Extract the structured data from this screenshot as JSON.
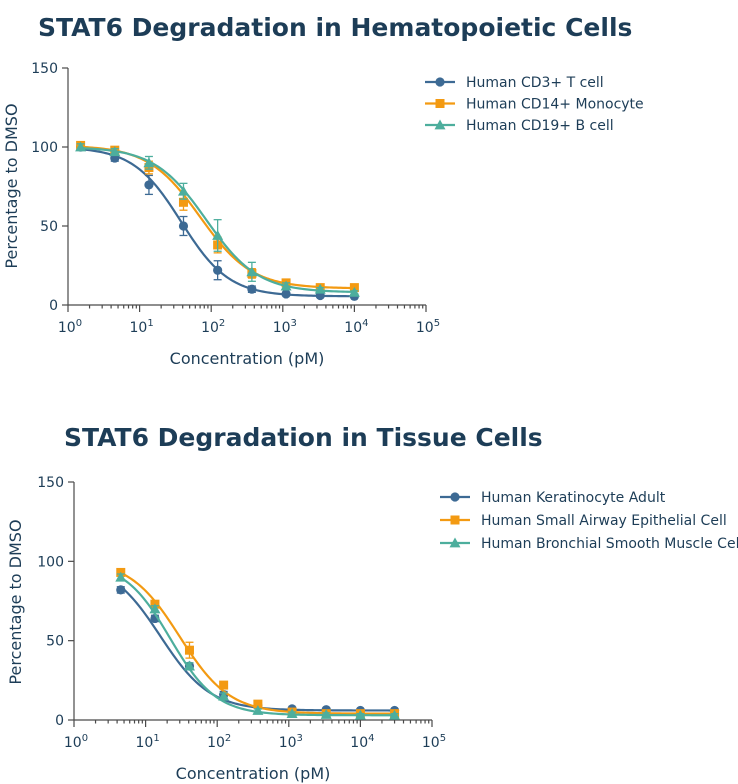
{
  "chart_data": [
    {
      "type": "line",
      "title": "STAT6 Degradation in Hematopoietic Cells",
      "xlabel": "Concentration (pM)",
      "ylabel": "Percentage to DMSO",
      "xscale": "log",
      "xlim": [
        1,
        100000
      ],
      "ylim": [
        0,
        150
      ],
      "xticks": [
        {
          "base": "10",
          "exp": "0"
        },
        {
          "base": "10",
          "exp": "1"
        },
        {
          "base": "10",
          "exp": "2"
        },
        {
          "base": "10",
          "exp": "3"
        },
        {
          "base": "10",
          "exp": "4"
        },
        {
          "base": "10",
          "exp": "5"
        }
      ],
      "yticks": [
        "0",
        "50",
        "100",
        "150"
      ],
      "grid": false,
      "legend_position": "top-right",
      "series": [
        {
          "name": "Human CD3+ T cell",
          "color": "#3d6a94",
          "marker": "circle",
          "x": [
            1.5,
            4.5,
            13.5,
            41,
            123,
            370,
            1111,
            3333,
            10000
          ],
          "y": [
            100,
            93,
            76,
            50,
            22,
            10,
            7,
            6,
            5.5
          ],
          "err": [
            2,
            2,
            6,
            6,
            6,
            2,
            1,
            1,
            1
          ],
          "fit": {
            "top": 100,
            "bottom": 5.5,
            "ec50": 38,
            "hill": 1.3
          }
        },
        {
          "name": "Human CD14+ Monocyte",
          "color": "#f39a12",
          "marker": "square",
          "x": [
            1.5,
            4.5,
            13.5,
            41,
            123,
            370,
            1111,
            3333,
            10000
          ],
          "y": [
            101,
            98,
            87,
            65,
            38,
            20,
            14,
            11,
            11
          ],
          "err": [
            2,
            2,
            4,
            5,
            5,
            3,
            2,
            1,
            1
          ],
          "fit": {
            "top": 101,
            "bottom": 10.5,
            "ec50": 70,
            "hill": 1.2
          }
        },
        {
          "name": "Human CD19+ B cell",
          "color": "#4dae9d",
          "marker": "triangle",
          "x": [
            1.5,
            4.5,
            13.5,
            41,
            123,
            370,
            1111,
            3333,
            10000
          ],
          "y": [
            100,
            97,
            90,
            72,
            44,
            21,
            12,
            10,
            8
          ],
          "err": [
            2,
            2,
            4,
            5,
            10,
            6,
            2,
            1,
            1
          ],
          "fit": {
            "top": 100,
            "bottom": 8,
            "ec50": 85,
            "hill": 1.2
          }
        }
      ]
    },
    {
      "type": "line",
      "title": "STAT6 Degradation in Tissue Cells",
      "xlabel": "Concentration (pM)",
      "ylabel": "Percentage to DMSO",
      "xscale": "log",
      "xlim": [
        1,
        100000
      ],
      "ylim": [
        0,
        150
      ],
      "xticks": [
        {
          "base": "10",
          "exp": "0"
        },
        {
          "base": "10",
          "exp": "1"
        },
        {
          "base": "10",
          "exp": "2"
        },
        {
          "base": "10",
          "exp": "3"
        },
        {
          "base": "10",
          "exp": "4"
        },
        {
          "base": "10",
          "exp": "5"
        }
      ],
      "yticks": [
        "0",
        "50",
        "100",
        "150"
      ],
      "grid": false,
      "legend_position": "top-right",
      "series": [
        {
          "name": "Human Keratinocyte Adult",
          "color": "#3d6a94",
          "marker": "circle",
          "x": [
            4.5,
            13.5,
            41,
            123,
            370,
            1111,
            3333,
            10000,
            30000
          ],
          "y": [
            82,
            64,
            34,
            16,
            9,
            7,
            6.5,
            6,
            6
          ],
          "err": [
            2,
            2,
            2,
            2,
            2,
            1,
            1,
            1,
            1
          ],
          "fit": {
            "top": 100,
            "bottom": 6,
            "ec50": 16,
            "hill": 1.25
          }
        },
        {
          "name": "Human Small Airway Epithelial Cell",
          "color": "#f39a12",
          "marker": "square",
          "x": [
            4.5,
            13.5,
            41,
            123,
            370,
            1111,
            3333,
            10000,
            30000
          ],
          "y": [
            93,
            73,
            44,
            22,
            10,
            5,
            4,
            4,
            4
          ],
          "err": [
            2,
            2,
            5,
            2,
            2,
            1,
            1,
            1,
            1
          ],
          "fit": {
            "top": 101,
            "bottom": 4,
            "ec50": 30,
            "hill": 1.25
          }
        },
        {
          "name": "Human Bronchial Smooth Muscle Cell",
          "color": "#4dae9d",
          "marker": "triangle",
          "x": [
            4.5,
            13.5,
            41,
            123,
            370,
            1111,
            3333,
            10000,
            30000
          ],
          "y": [
            90,
            70,
            34,
            15,
            6,
            4,
            3.5,
            3,
            3
          ],
          "err": [
            2,
            2,
            2,
            2,
            1,
            1,
            1,
            1,
            1
          ],
          "fit": {
            "top": 100,
            "bottom": 3,
            "ec50": 22,
            "hill": 1.35
          }
        }
      ]
    }
  ]
}
